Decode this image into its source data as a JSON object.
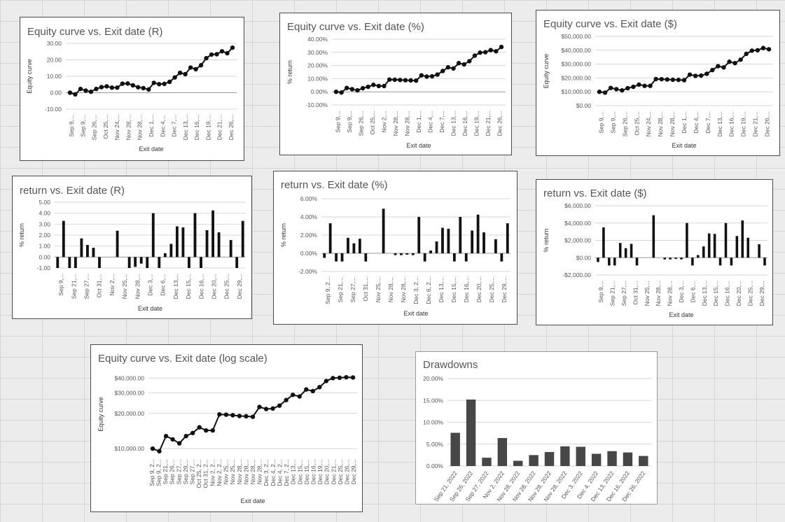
{
  "colors": {
    "line": "#111111",
    "bar": "#111111",
    "drawdown_bar": "#474747",
    "grid": "#d6d6d6",
    "zero": "#999999"
  },
  "chart_data": [
    {
      "id": "eq-r",
      "type": "line",
      "title": "Equity curve vs. Exit date (R)",
      "ylabel": "Equity curve",
      "xlabel": "Exit date",
      "ylim": [
        -10,
        30
      ],
      "y_ticks": [
        -10,
        0,
        10,
        20,
        30
      ],
      "y_tick_labels": [
        "-10.00",
        "0.00",
        "10.00",
        "20.00",
        "30.00"
      ],
      "tick_labels": [
        "Sep 9,...",
        "Sep 9,...",
        "Sep 26,...",
        "Oct 25,...",
        "Nov 24,...",
        "Nov 28,...",
        "Nov 28,...",
        "Dec 1,...",
        "Dec 4,...",
        "Dec 7,...",
        "Dec 13,...",
        "Dec 16,...",
        "Dec 19,...",
        "Dec 21,...",
        "Dec 26,..."
      ],
      "values": [
        0,
        -1,
        2.3,
        1.3,
        0.6,
        2.3,
        3.4,
        3.9,
        3.1,
        3.1,
        5.5,
        5.6,
        4.5,
        3.3,
        2.8,
        2.0,
        6.0,
        5.2,
        5.4,
        6.6,
        9.3,
        12.1,
        11.3,
        15.3,
        14.3,
        16.7,
        21.0,
        23.2,
        23.4,
        25.2,
        24.0,
        27.4
      ]
    },
    {
      "id": "eq-pct",
      "type": "line",
      "title": "Equity curve vs. Exit date (%)",
      "ylabel": "% return",
      "xlabel": "Exit date",
      "ylim": [
        -10,
        40
      ],
      "y_ticks": [
        -10,
        0,
        10,
        20,
        30,
        40
      ],
      "y_tick_labels": [
        "-10.00%",
        "0.00%",
        "10.00%",
        "20.00%",
        "30.00%",
        "40.00%"
      ],
      "tick_labels": [
        "Sep 9,...",
        "Sep 9,...",
        "Sep 26,...",
        "Oct 25,...",
        "Nov 2,...",
        "Nov 28,...",
        "Nov 28,...",
        "Dec 1,...",
        "Dec 4,...",
        "Dec 7,...",
        "Dec 13,...",
        "Dec 16,...",
        "Dec 19,...",
        "Dec 21,...",
        "Dec 26,..."
      ],
      "values": [
        0,
        -0.5,
        2.9,
        2.0,
        1.1,
        2.7,
        3.8,
        5.3,
        4.4,
        4.4,
        9.3,
        9.2,
        9.0,
        8.8,
        8.7,
        8.5,
        12.5,
        11.6,
        11.8,
        13.1,
        15.8,
        18.6,
        17.7,
        21.8,
        20.8,
        23.3,
        27.5,
        29.8,
        30.1,
        31.7,
        30.8,
        34.1
      ]
    },
    {
      "id": "eq-usd",
      "type": "line",
      "title": "Equity curve vs. Exit date ($)",
      "ylabel": "Equity curve",
      "xlabel": "Exit date",
      "ylim": [
        0,
        50000
      ],
      "y_ticks": [
        0,
        10000,
        20000,
        30000,
        40000,
        50000
      ],
      "y_tick_labels": [
        "$0.00",
        "$10,000.00",
        "$20,000.00",
        "$30,000.00",
        "$40,000.00",
        "$50,000.00"
      ],
      "tick_labels": [
        "Sep 9,...",
        "Sep 9,...",
        "Sep 26,...",
        "Oct 25,...",
        "Nov 24,...",
        "Nov 28,...",
        "Nov 28,...",
        "Dec 1,...",
        "Dec 4,...",
        "Dec 7,...",
        "Dec 13,...",
        "Dec 16,...",
        "Dec 19,...",
        "Dec 21,...",
        "Dec 26,..."
      ],
      "values": [
        10000,
        9400,
        12800,
        11900,
        11000,
        12600,
        13600,
        15200,
        14300,
        14300,
        19200,
        19100,
        18900,
        18700,
        18600,
        18400,
        22400,
        21500,
        21700,
        23000,
        25700,
        28500,
        27600,
        31700,
        30700,
        33200,
        37400,
        39700,
        40000,
        41600,
        40700
      ]
    },
    {
      "id": "ret-r",
      "type": "bar",
      "title": "return vs. Exit date (R)",
      "ylabel": "% return",
      "xlabel": "Exit date",
      "ylim": [
        -1,
        5
      ],
      "y_ticks": [
        -1,
        0,
        1,
        2,
        3,
        4,
        5
      ],
      "y_tick_labels": [
        "-1.00",
        "0.00",
        "1.00",
        "2.00",
        "3.00",
        "4.00",
        "5.00"
      ],
      "tick_labels": [
        "Sep 9,...",
        "Sep 21,...",
        "Sep 27,...",
        "Oct 31,...",
        "Nov 2,...",
        "Nov 25,...",
        "Nov 28,...",
        "Dec 3,...",
        "Dec 6,...",
        "Dec 13,...",
        "Dec 15,...",
        "Dec 16,...",
        "Dec 20,...",
        "Dec 25,...",
        "Dec 29,..."
      ],
      "values": [
        -1,
        3.3,
        -1,
        -1,
        1.7,
        1.1,
        0.85,
        -1,
        0,
        0,
        2.4,
        0,
        -1,
        -0.9,
        -0.6,
        -1,
        4.0,
        -1,
        0.35,
        1.2,
        2.8,
        2.7,
        -1,
        4.0,
        -1,
        2.45,
        4.25,
        2.25,
        0,
        1.55,
        -1,
        3.3
      ]
    },
    {
      "id": "ret-pct",
      "type": "bar",
      "title": "return vs. Exit date (%)",
      "ylabel": "% return",
      "xlabel": "Exit date",
      "ylim": [
        -2,
        6
      ],
      "y_ticks": [
        -2,
        0,
        2,
        4,
        6
      ],
      "y_tick_labels": [
        "-2.00%",
        "0.00%",
        "2.00%",
        "4.00%",
        "6.00%"
      ],
      "tick_labels": [
        "Sep 9, 2...",
        "Sep 21,...",
        "Sep 27,...",
        "Oct 31,...",
        "Nov 25,...",
        "Nov 28,...",
        "Nov 28,...",
        "Dec 3, 2...",
        "Dec 6, 2...",
        "Dec 13,...",
        "Dec 15,...",
        "Dec 16,...",
        "Dec 20,...",
        "Dec 25,...",
        "Dec 29,..."
      ],
      "values": [
        -0.5,
        3.3,
        -0.9,
        -0.9,
        1.7,
        1.1,
        1.6,
        -0.9,
        0,
        0,
        4.9,
        0,
        -0.2,
        -0.2,
        -0.15,
        -0.2,
        4.0,
        -0.9,
        0.3,
        1.3,
        2.8,
        2.7,
        -0.9,
        4.0,
        -0.9,
        2.5,
        4.25,
        2.3,
        0,
        1.55,
        -0.9,
        3.3
      ]
    },
    {
      "id": "ret-usd",
      "type": "bar",
      "title": "return vs. Exit date ($)",
      "ylabel": "% return",
      "xlabel": "Exit date",
      "ylim": [
        -2000,
        6000
      ],
      "y_ticks": [
        -2000,
        0,
        2000,
        4000,
        6000
      ],
      "y_tick_labels": [
        "-$2,000.00",
        "$0.00",
        "$2,000.00",
        "$4,000.00",
        "$6,000.00"
      ],
      "tick_labels": [
        "Sep 9,...",
        "Sep 21,...",
        "Sep 27,...",
        "Oct 31,...",
        "Nov 25,...",
        "Nov 28,...",
        "Nov 28,...",
        "Dec 3,...",
        "Dec 6,...",
        "Dec 13,...",
        "Dec 15,...",
        "Dec 16,...",
        "Dec 20,...",
        "Dec 25,...",
        "Dec 29,..."
      ],
      "values": [
        -500,
        3500,
        -900,
        -900,
        1700,
        1100,
        1600,
        -900,
        0,
        0,
        4900,
        0,
        -200,
        -200,
        -150,
        -200,
        4000,
        -900,
        300,
        1300,
        2800,
        2750,
        -900,
        4000,
        -900,
        2500,
        4300,
        2300,
        0,
        1550,
        -900
      ]
    },
    {
      "id": "eq-log",
      "type": "line",
      "log_scale": true,
      "title": "Equity curve vs. Exit date (log scale)",
      "ylabel": "Equity curve",
      "xlabel": "Exit date",
      "ylim": [
        9100,
        42500
      ],
      "y_ticks": [
        10000,
        20000,
        30000,
        40000
      ],
      "y_tick_labels": [
        "$10,000.00",
        "$20,000.00",
        "$30,000.00",
        "$40,000.00"
      ],
      "tick_labels": [
        "Sep 9, 2...",
        "Sep 9, 2...",
        "Sep 21,...",
        "Sep 26,...",
        "Sep 27,...",
        "Sep 29,...",
        "Sep 27,...",
        "Oct 25, 2...",
        "Oct 31, 2...",
        "Nov 2, 2...",
        "Nov 2, 2...",
        "Nov 25,...",
        "Nov 25,...",
        "Nov 28,...",
        "Nov 28,...",
        "Nov 28,...",
        "Nov 28,...",
        "Dec 3, 2...",
        "Dec 4, 2...",
        "Dec 4, 2...",
        "Dec 7, 2...",
        "Dec 13,...",
        "Dec 15,...",
        "Dec 15,...",
        "Dec 16,...",
        "Dec 19,...",
        "Dec 20,...",
        "Dec 21,...",
        "Dec 25,...",
        "Dec 26,...",
        "Dec 29,..."
      ],
      "values": [
        10000,
        9500,
        12800,
        12000,
        11100,
        12800,
        13600,
        15200,
        14300,
        14300,
        19600,
        19500,
        19300,
        19000,
        18900,
        18700,
        22700,
        21800,
        22000,
        23300,
        26000,
        28800,
        27900,
        32000,
        31000,
        33500,
        37800,
        40000,
        40300,
        40700,
        40500
      ]
    },
    {
      "id": "drawdowns",
      "type": "bar",
      "title": "Drawdowns",
      "ylim": [
        0,
        20
      ],
      "y_ticks": [
        0,
        5,
        10,
        15,
        20
      ],
      "y_tick_labels": [
        "0.00%",
        "5.00%",
        "10.00%",
        "15.00%",
        "20.00%"
      ],
      "categories": [
        "Sep 21, 2022",
        "Sep 26, 2022",
        "Sep 27, 2022",
        "Nov 2, 2022",
        "Nov 28, 2022",
        "Nov 28, 2022",
        "Nov 28, 2022",
        "Nov 28, 2022",
        "Dec 3, 2022",
        "Dec 4, 2022",
        "Dec 13, 2022",
        "Dec 16, 2022",
        "Dec 26, 2022"
      ],
      "tick_labels": [
        "Sep 21, 2022",
        "Sep 26, 2022",
        "Sep 27, 2022",
        "Nov 2, 2022",
        "Nov 28, 2022",
        "Nov 28, 2022",
        "Nov 28, 2022",
        "Nov 28, 2022",
        "Dec 3, 2022",
        "Dec 4, 2022",
        "Dec 13, 2022",
        "Dec 16, 2022",
        "Dec 26, 2022"
      ],
      "values": [
        7.6,
        15.2,
        1.9,
        6.4,
        1.2,
        2.5,
        3.2,
        4.5,
        4.4,
        2.8,
        3.4,
        3.1,
        2.3
      ]
    }
  ]
}
